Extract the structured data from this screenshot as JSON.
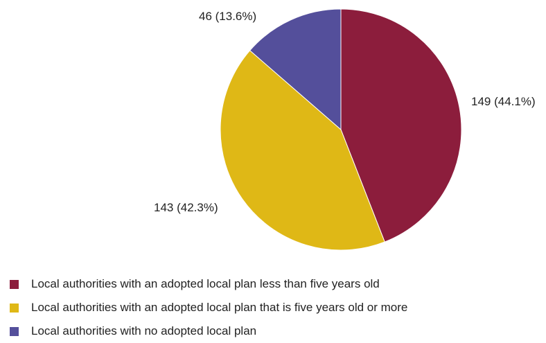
{
  "chart_data": {
    "type": "pie",
    "title": "",
    "slices": [
      {
        "name": "Local authorities with an adopted local plan less than five years old",
        "value": 149,
        "percent": 44.1,
        "label": "149 (44.1%)",
        "color": "#8c1d3c"
      },
      {
        "name": "Local authorities with an adopted local plan that is five years old or more",
        "value": 143,
        "percent": 42.3,
        "label": "143 (42.3%)",
        "color": "#dfb816"
      },
      {
        "name": "Local authorities with no adopted local plan",
        "value": 46,
        "percent": 13.6,
        "label": "46 (13.6%)",
        "color": "#544f9b"
      }
    ],
    "start_angle": "12 o'clock",
    "direction": "clockwise",
    "legend_position": "bottom-left"
  }
}
